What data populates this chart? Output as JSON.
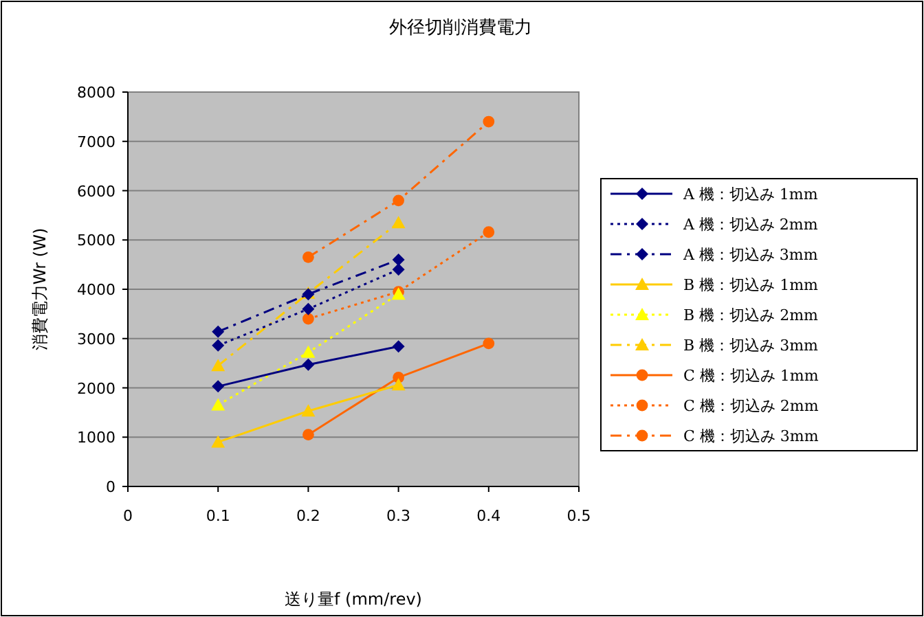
{
  "chart_data": {
    "type": "line",
    "title": "外径切削消費電力",
    "xlabel": "送り量f (mm/rev)",
    "ylabel": "消費電力Wr (W)",
    "xlim": [
      0,
      0.5
    ],
    "xticks": [
      0,
      0.1,
      0.2,
      0.3,
      0.4,
      0.5
    ],
    "ylim": [
      0,
      8000
    ],
    "yticks": [
      0,
      1000,
      2000,
      3000,
      4000,
      5000,
      6000,
      7000,
      8000
    ],
    "grid": "y",
    "legend": "right",
    "series": [
      {
        "name": "A 機：切込み 1mm",
        "color": "#000080",
        "marker": "diamond",
        "line_style": "solid",
        "x": [
          0.1,
          0.2,
          0.3
        ],
        "values": [
          2030,
          2470,
          2840
        ]
      },
      {
        "name": "A 機：切込み 2mm",
        "color": "#000080",
        "marker": "diamond",
        "line_style": "dotted",
        "x": [
          0.1,
          0.2,
          0.3
        ],
        "values": [
          2860,
          3600,
          4400
        ]
      },
      {
        "name": "A 機：切込み 3mm",
        "color": "#000080",
        "marker": "diamond",
        "line_style": "dashed",
        "x": [
          0.1,
          0.2,
          0.3
        ],
        "values": [
          3140,
          3900,
          4600
        ]
      },
      {
        "name": "B 機：切込み 1mm",
        "color": "#ffcc00",
        "marker": "triangle",
        "line_style": "solid",
        "x": [
          0.1,
          0.2,
          0.3
        ],
        "values": [
          900,
          1530,
          2060
        ]
      },
      {
        "name": "B 機：切込み 2mm",
        "color": "#ffff00",
        "marker": "triangle",
        "line_style": "dotted",
        "x": [
          0.1,
          0.2,
          0.3
        ],
        "values": [
          1650,
          2720,
          3900
        ]
      },
      {
        "name": "B 機：切込み 3mm",
        "color": "#ffcc00",
        "marker": "triangle",
        "line_style": "dashed",
        "x": [
          0.1,
          0.2,
          0.3
        ],
        "values": [
          2450,
          3920,
          5350
        ]
      },
      {
        "name": "C 機：切込み 1mm",
        "color": "#ff6600",
        "marker": "circle",
        "line_style": "solid",
        "x": [
          0.2,
          0.3,
          0.4
        ],
        "values": [
          1050,
          2210,
          2900
        ]
      },
      {
        "name": "C 機：切込み 2mm",
        "color": "#ff6600",
        "marker": "circle",
        "line_style": "dotted",
        "x": [
          0.2,
          0.3,
          0.4
        ],
        "values": [
          3400,
          3950,
          5160
        ]
      },
      {
        "name": "C 機：切込み 3mm",
        "color": "#ff6600",
        "marker": "circle",
        "line_style": "dashed",
        "x": [
          0.2,
          0.3,
          0.4
        ],
        "values": [
          4650,
          5800,
          7400
        ]
      }
    ]
  }
}
